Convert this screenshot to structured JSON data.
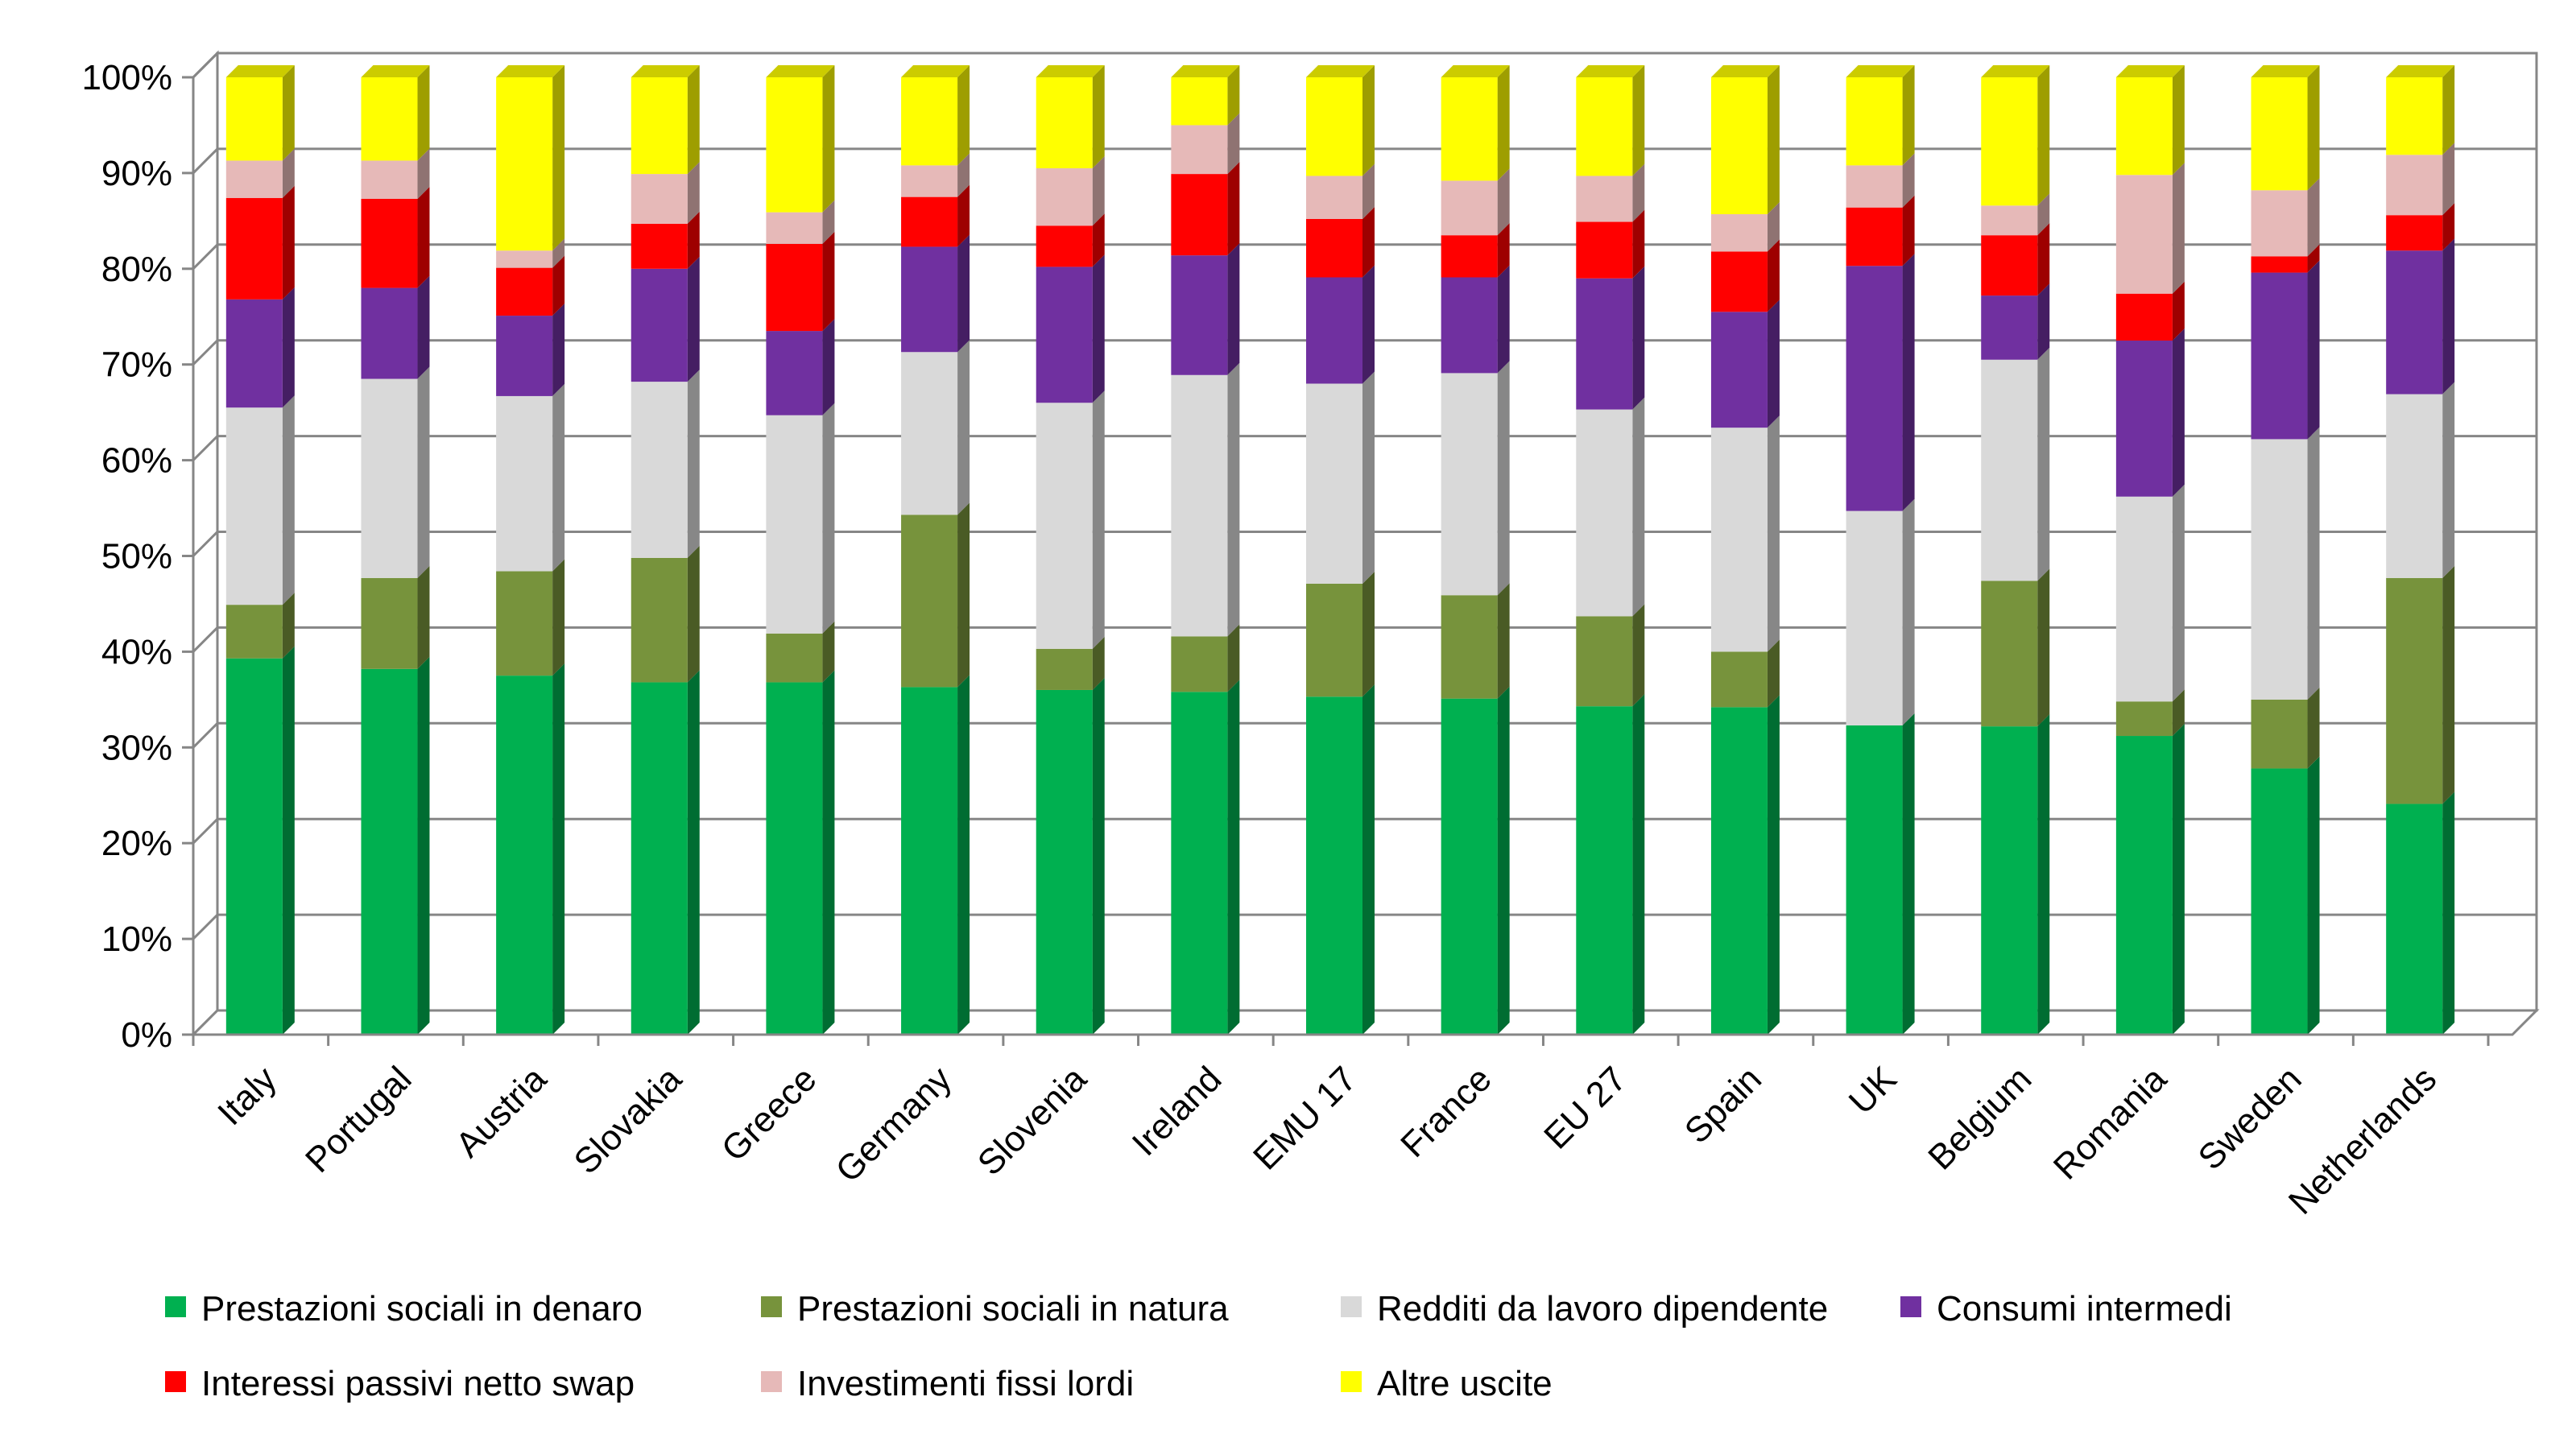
{
  "chart_data": {
    "type": "bar",
    "stacked": true,
    "percent": true,
    "ylim": [
      0,
      100
    ],
    "yticks": [
      "0%",
      "10%",
      "20%",
      "30%",
      "40%",
      "50%",
      "60%",
      "70%",
      "80%",
      "90%",
      "100%"
    ],
    "grid": true,
    "legend_position": "bottom",
    "categories": [
      "Italy",
      "Portugal",
      "Austria",
      "Slovakia",
      "Greece",
      "Germany",
      "Slovenia",
      "Ireland",
      "EMU 17",
      "France",
      "EU 27",
      "Spain",
      "UK",
      "Belgium",
      "Romania",
      "Sweden",
      "Netherlands"
    ],
    "series": [
      {
        "name": "Prestazioni sociali in denaro",
        "color": "#00b050",
        "values": [
          39.3,
          38.2,
          37.5,
          36.8,
          36.8,
          36.3,
          36.0,
          35.8,
          35.3,
          35.1,
          34.3,
          34.2,
          32.3,
          32.2,
          31.2,
          27.8,
          24.1
        ]
      },
      {
        "name": "Prestazioni sociali in natura",
        "color": "#77933c",
        "values": [
          5.6,
          9.5,
          10.9,
          13.0,
          5.1,
          18.0,
          4.3,
          5.8,
          11.8,
          10.8,
          9.4,
          5.8,
          0.0,
          15.2,
          3.6,
          7.2,
          23.6
        ]
      },
      {
        "name": "Redditi da lavoro dipendente",
        "color": "#d9d9d9",
        "values": [
          20.6,
          20.8,
          18.3,
          18.4,
          22.8,
          17.0,
          25.7,
          27.3,
          20.9,
          23.2,
          21.6,
          23.4,
          22.4,
          23.1,
          21.4,
          27.2,
          19.2
        ]
      },
      {
        "name": "Consumi intermedi",
        "color": "#7030a0",
        "values": [
          11.3,
          9.5,
          8.4,
          11.8,
          8.8,
          11.0,
          14.2,
          12.5,
          11.1,
          10.0,
          13.7,
          12.1,
          25.6,
          6.7,
          16.3,
          17.4,
          15.0
        ]
      },
      {
        "name": "Interessi passivi netto swap",
        "color": "#ff0000",
        "values": [
          10.6,
          9.3,
          5.0,
          4.7,
          9.1,
          5.2,
          4.3,
          8.5,
          6.1,
          4.4,
          5.9,
          6.3,
          6.1,
          6.3,
          4.9,
          1.7,
          3.7
        ]
      },
      {
        "name": "Investimenti fissi lordi",
        "color": "#e6b9b8",
        "values": [
          3.9,
          4.0,
          1.8,
          5.2,
          3.3,
          3.3,
          6.0,
          5.1,
          4.5,
          5.7,
          4.8,
          3.9,
          4.4,
          3.1,
          12.4,
          6.9,
          6.3
        ]
      },
      {
        "name": "Altre uscite",
        "color": "#ffff00",
        "values": [
          8.7,
          8.7,
          18.1,
          10.1,
          14.1,
          9.2,
          9.5,
          5.0,
          10.3,
          10.8,
          10.3,
          14.3,
          9.2,
          13.4,
          10.2,
          11.8,
          8.1
        ]
      }
    ]
  }
}
